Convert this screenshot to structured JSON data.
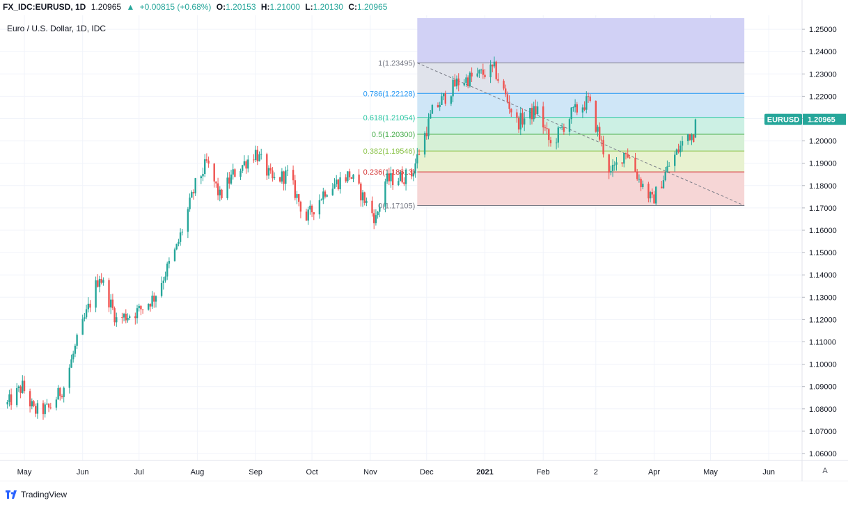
{
  "header": {
    "symbol": "FX_IDC:EURUSD, 1D",
    "last": "1.20965",
    "change": "+0.00815 (+0.68%)",
    "open_label": "O:",
    "open": "1.20153",
    "high_label": "H:",
    "high": "1.21000",
    "low_label": "L:",
    "low": "1.20130",
    "close_label": "C:",
    "close": "1.20965"
  },
  "subtitle": "Euro / U.S. Dollar, 1D, IDC",
  "footer": {
    "brand": "TradingView",
    "auto_label": "A"
  },
  "colors": {
    "up": "#26a69a",
    "down": "#ef5350",
    "grid": "#f0f3fa",
    "axis_text": "#131722",
    "price_tag": "#26a69a"
  },
  "chart_data": {
    "type": "candlestick",
    "title": "Euro / U.S. Dollar, 1D, IDC",
    "ylim": [
      1.055,
      1.255
    ],
    "y_ticks": [
      "1.06000",
      "1.07000",
      "1.08000",
      "1.09000",
      "1.10000",
      "1.11000",
      "1.12000",
      "1.13000",
      "1.14000",
      "1.15000",
      "1.16000",
      "1.17000",
      "1.18000",
      "1.19000",
      "1.20000",
      "1.21000",
      "1.22000",
      "1.23000",
      "1.24000",
      "1.25000"
    ],
    "x_ticks": [
      {
        "label": "May",
        "date": "2020-05-01"
      },
      {
        "label": "Jun",
        "date": "2020-06-01"
      },
      {
        "label": "Jul",
        "date": "2020-07-01"
      },
      {
        "label": "Aug",
        "date": "2020-08-01"
      },
      {
        "label": "Sep",
        "date": "2020-09-01"
      },
      {
        "label": "Oct",
        "date": "2020-10-01"
      },
      {
        "label": "Nov",
        "date": "2020-11-01"
      },
      {
        "label": "Dec",
        "date": "2020-12-01"
      },
      {
        "label": "2021",
        "date": "2021-01-01",
        "bold": true
      },
      {
        "label": "Feb",
        "date": "2021-02-01"
      },
      {
        "label": "2",
        "date": "2021-03-01"
      },
      {
        "label": "Apr",
        "date": "2021-04-01"
      },
      {
        "label": "May",
        "date": "2021-05-01"
      },
      {
        "label": "Jun",
        "date": "2021-06-01"
      }
    ],
    "grid": true,
    "last_price": {
      "label": "EURUSD",
      "value": "1.20965"
    },
    "candle_path": [
      [
        "2020-04-22",
        1.082
      ],
      [
        "2020-04-30",
        1.09
      ],
      [
        "2020-05-06",
        1.079
      ],
      [
        "2020-05-14",
        1.08
      ],
      [
        "2020-05-22",
        1.09
      ],
      [
        "2020-05-29",
        1.11
      ],
      [
        "2020-06-10",
        1.14
      ],
      [
        "2020-06-19",
        1.12
      ],
      [
        "2020-07-01",
        1.124
      ],
      [
        "2020-07-09",
        1.13
      ],
      [
        "2020-07-21",
        1.152
      ],
      [
        "2020-07-31",
        1.18
      ],
      [
        "2020-08-06",
        1.19
      ],
      [
        "2020-08-13",
        1.175
      ],
      [
        "2020-08-20",
        1.185
      ],
      [
        "2020-09-01",
        1.195
      ],
      [
        "2020-09-10",
        1.182
      ],
      [
        "2020-09-18",
        1.185
      ],
      [
        "2020-09-28",
        1.165
      ],
      [
        "2020-10-08",
        1.178
      ],
      [
        "2020-10-21",
        1.185
      ],
      [
        "2020-11-04",
        1.165
      ],
      [
        "2020-11-09",
        1.182
      ],
      [
        "2020-11-23",
        1.185
      ],
      [
        "2020-12-04",
        1.213
      ],
      [
        "2020-12-17",
        1.226
      ],
      [
        "2021-01-06",
        1.232
      ],
      [
        "2021-01-18",
        1.208
      ],
      [
        "2021-01-29",
        1.214
      ],
      [
        "2021-02-05",
        1.198
      ],
      [
        "2021-02-16",
        1.212
      ],
      [
        "2021-02-25",
        1.218
      ],
      [
        "2021-03-09",
        1.185
      ],
      [
        "2021-03-17",
        1.196
      ],
      [
        "2021-03-24",
        1.183
      ],
      [
        "2021-03-31",
        1.173
      ],
      [
        "2021-04-09",
        1.189
      ],
      [
        "2021-04-19",
        1.203
      ],
      [
        "2021-04-22",
        1.203
      ],
      [
        "2021-04-23",
        1.2096
      ]
    ],
    "fibonacci": {
      "start": "2020-11-26",
      "end": "2021-05-19",
      "trend_line": {
        "from": [
          "2020-11-26",
          1.23495
        ],
        "to": [
          "2021-05-19",
          1.17105
        ]
      },
      "levels": [
        {
          "label": "1(1.23495)",
          "value": 1.23495,
          "color": "#787b86",
          "fill": "#e0e3eb",
          "fill_to": 1.22128
        },
        {
          "label": "0.786(1.22128)",
          "value": 1.22128,
          "color": "#2196f3",
          "fill": "#cfe6f7",
          "fill_to": 1.21054
        },
        {
          "label": "0.618(1.21054)",
          "value": 1.21054,
          "color": "#26c6a0",
          "fill": "#ccf0e4",
          "fill_to": 1.203
        },
        {
          "label": "0.5(1.20300)",
          "value": 1.203,
          "color": "#4caf50",
          "fill": "#d6f0d6",
          "fill_to": 1.19546
        },
        {
          "label": "0.382(1.19546)",
          "value": 1.19546,
          "color": "#8bc34a",
          "fill": "#e8f2d0",
          "fill_to": 1.18613
        },
        {
          "label": "0.236(1.18613)",
          "value": 1.18613,
          "color": "#d32f2f",
          "fill": "#f6d6d6",
          "fill_to": 1.17105
        },
        {
          "label": "0(1.17105)",
          "value": 1.17105,
          "color": "#787b86"
        }
      ],
      "extension_fill": {
        "from": 1.23495,
        "to": 1.255,
        "color": "#d1d1f5"
      }
    }
  }
}
